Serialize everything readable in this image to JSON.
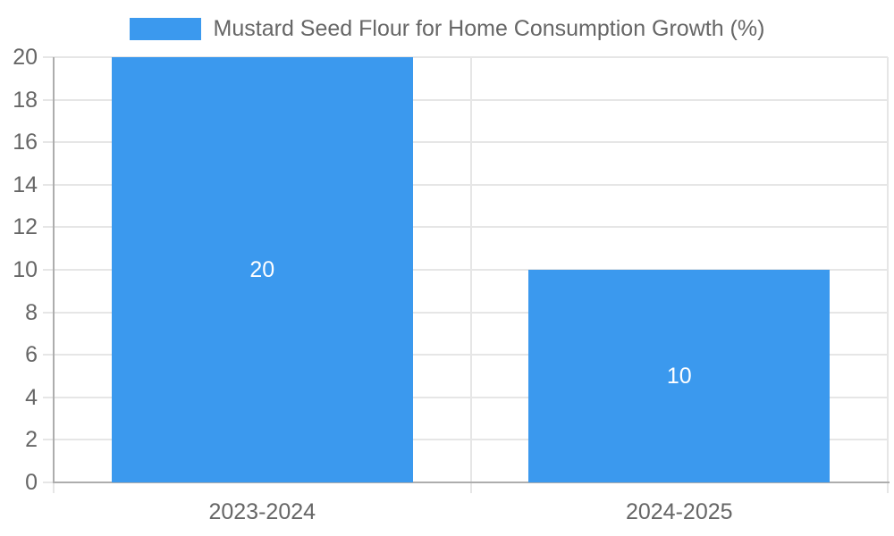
{
  "chart_data": {
    "type": "bar",
    "title": "Mustard Seed Flour for Home Consumption Growth (%)",
    "categories": [
      "2023-2024",
      "2024-2025"
    ],
    "values": [
      20,
      10
    ],
    "value_labels": [
      "20",
      "10"
    ],
    "xlabel": "",
    "ylabel": "",
    "ylim": [
      0,
      20
    ],
    "yticks": [
      0,
      2,
      4,
      6,
      8,
      10,
      12,
      14,
      16,
      18,
      20
    ],
    "grid": true,
    "legend_position": "top-center",
    "colors": {
      "bar": "#3B99EE",
      "grid": "#E6E6E6",
      "axis": "#ADADAD",
      "label": "#666666",
      "value_label": "#FFFFFF",
      "background": "#FFFFFF"
    }
  }
}
